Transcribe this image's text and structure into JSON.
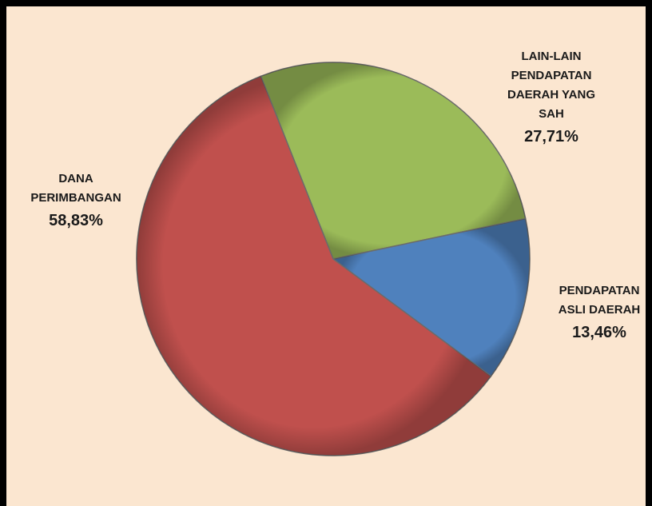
{
  "chart_data": {
    "type": "pie",
    "categories": [
      "LAIN-LAIN PENDAPATAN DAERAH YANG SAH",
      "PENDAPATAN ASLI DAERAH",
      "DANA PERIMBANGAN"
    ],
    "values": [
      27.71,
      13.46,
      58.83
    ],
    "value_labels": [
      "27,71%",
      "13,46%",
      "58,83%"
    ],
    "colors": [
      "#9bbb59",
      "#4f81bd",
      "#c0504d"
    ]
  }
}
